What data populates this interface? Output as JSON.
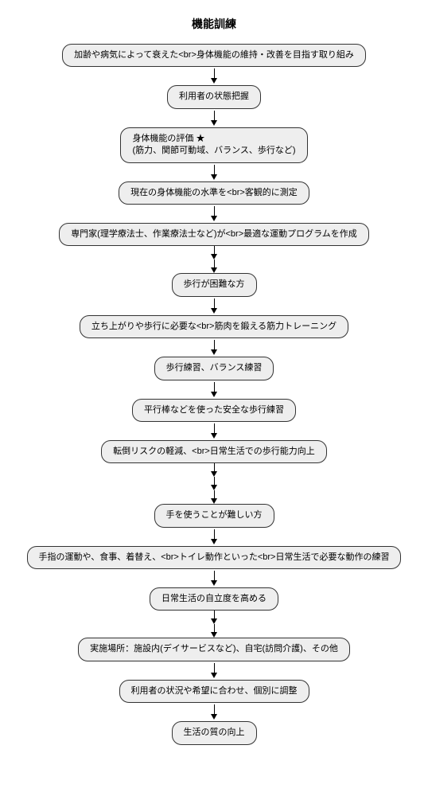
{
  "title": "機能訓練",
  "colors": {
    "node_bg": "#eeeeee",
    "node_border": "#333333",
    "arrow": "#000000",
    "background": "#ffffff"
  },
  "font": {
    "title_size": 14,
    "node_size": 11
  },
  "nodes": {
    "n1": "加齢や病気によって衰えた<br>身体機能の維持・改善を目指す取り組み",
    "n2": "利用者の状態把握",
    "n3": "身体機能の評価 ★\n(筋力、関節可動域、バランス、歩行など)",
    "n4": "現在の身体機能の水準を<br>客観的に測定",
    "n5": "専門家(理学療法士、作業療法士など)が<br>最適な運動プログラムを作成",
    "n6": "歩行が困難な方",
    "n7": "立ち上がりや歩行に必要な<br>筋肉を鍛える筋力トレーニング",
    "n8": "歩行練習、バランス練習",
    "n9": "平行棒などを使った安全な歩行練習",
    "n10": "転倒リスクの軽減、<br>日常生活での歩行能力向上",
    "n11": "手を使うことが難しい方",
    "n12": "手指の運動や、食事、着替え、<br>トイレ動作といった<br>日常生活で必要な動作の練習",
    "n13": "日常生活の自立度を高める",
    "n14": "実施場所：施設内(デイサービスなど)、自宅(訪問介護)、その他",
    "n15": "利用者の状況や希望に合わせ、個別に調整",
    "n16": "生活の質の向上"
  },
  "arrow_heights": {
    "short": 12,
    "long_seg": 10
  }
}
